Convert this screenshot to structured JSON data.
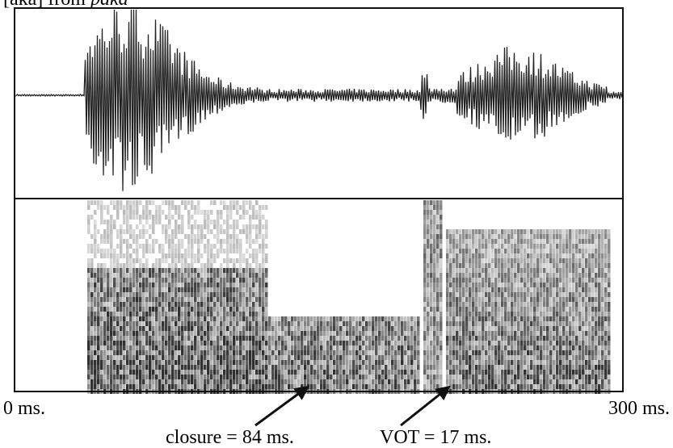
{
  "figure": {
    "caption_prefix": "[aka] from",
    "caption_word": "paka",
    "start_label": "0 ms.",
    "end_label": "300 ms.",
    "closure_label": "closure = 84 ms.",
    "vot_label": "VOT = 17 ms."
  }
}
